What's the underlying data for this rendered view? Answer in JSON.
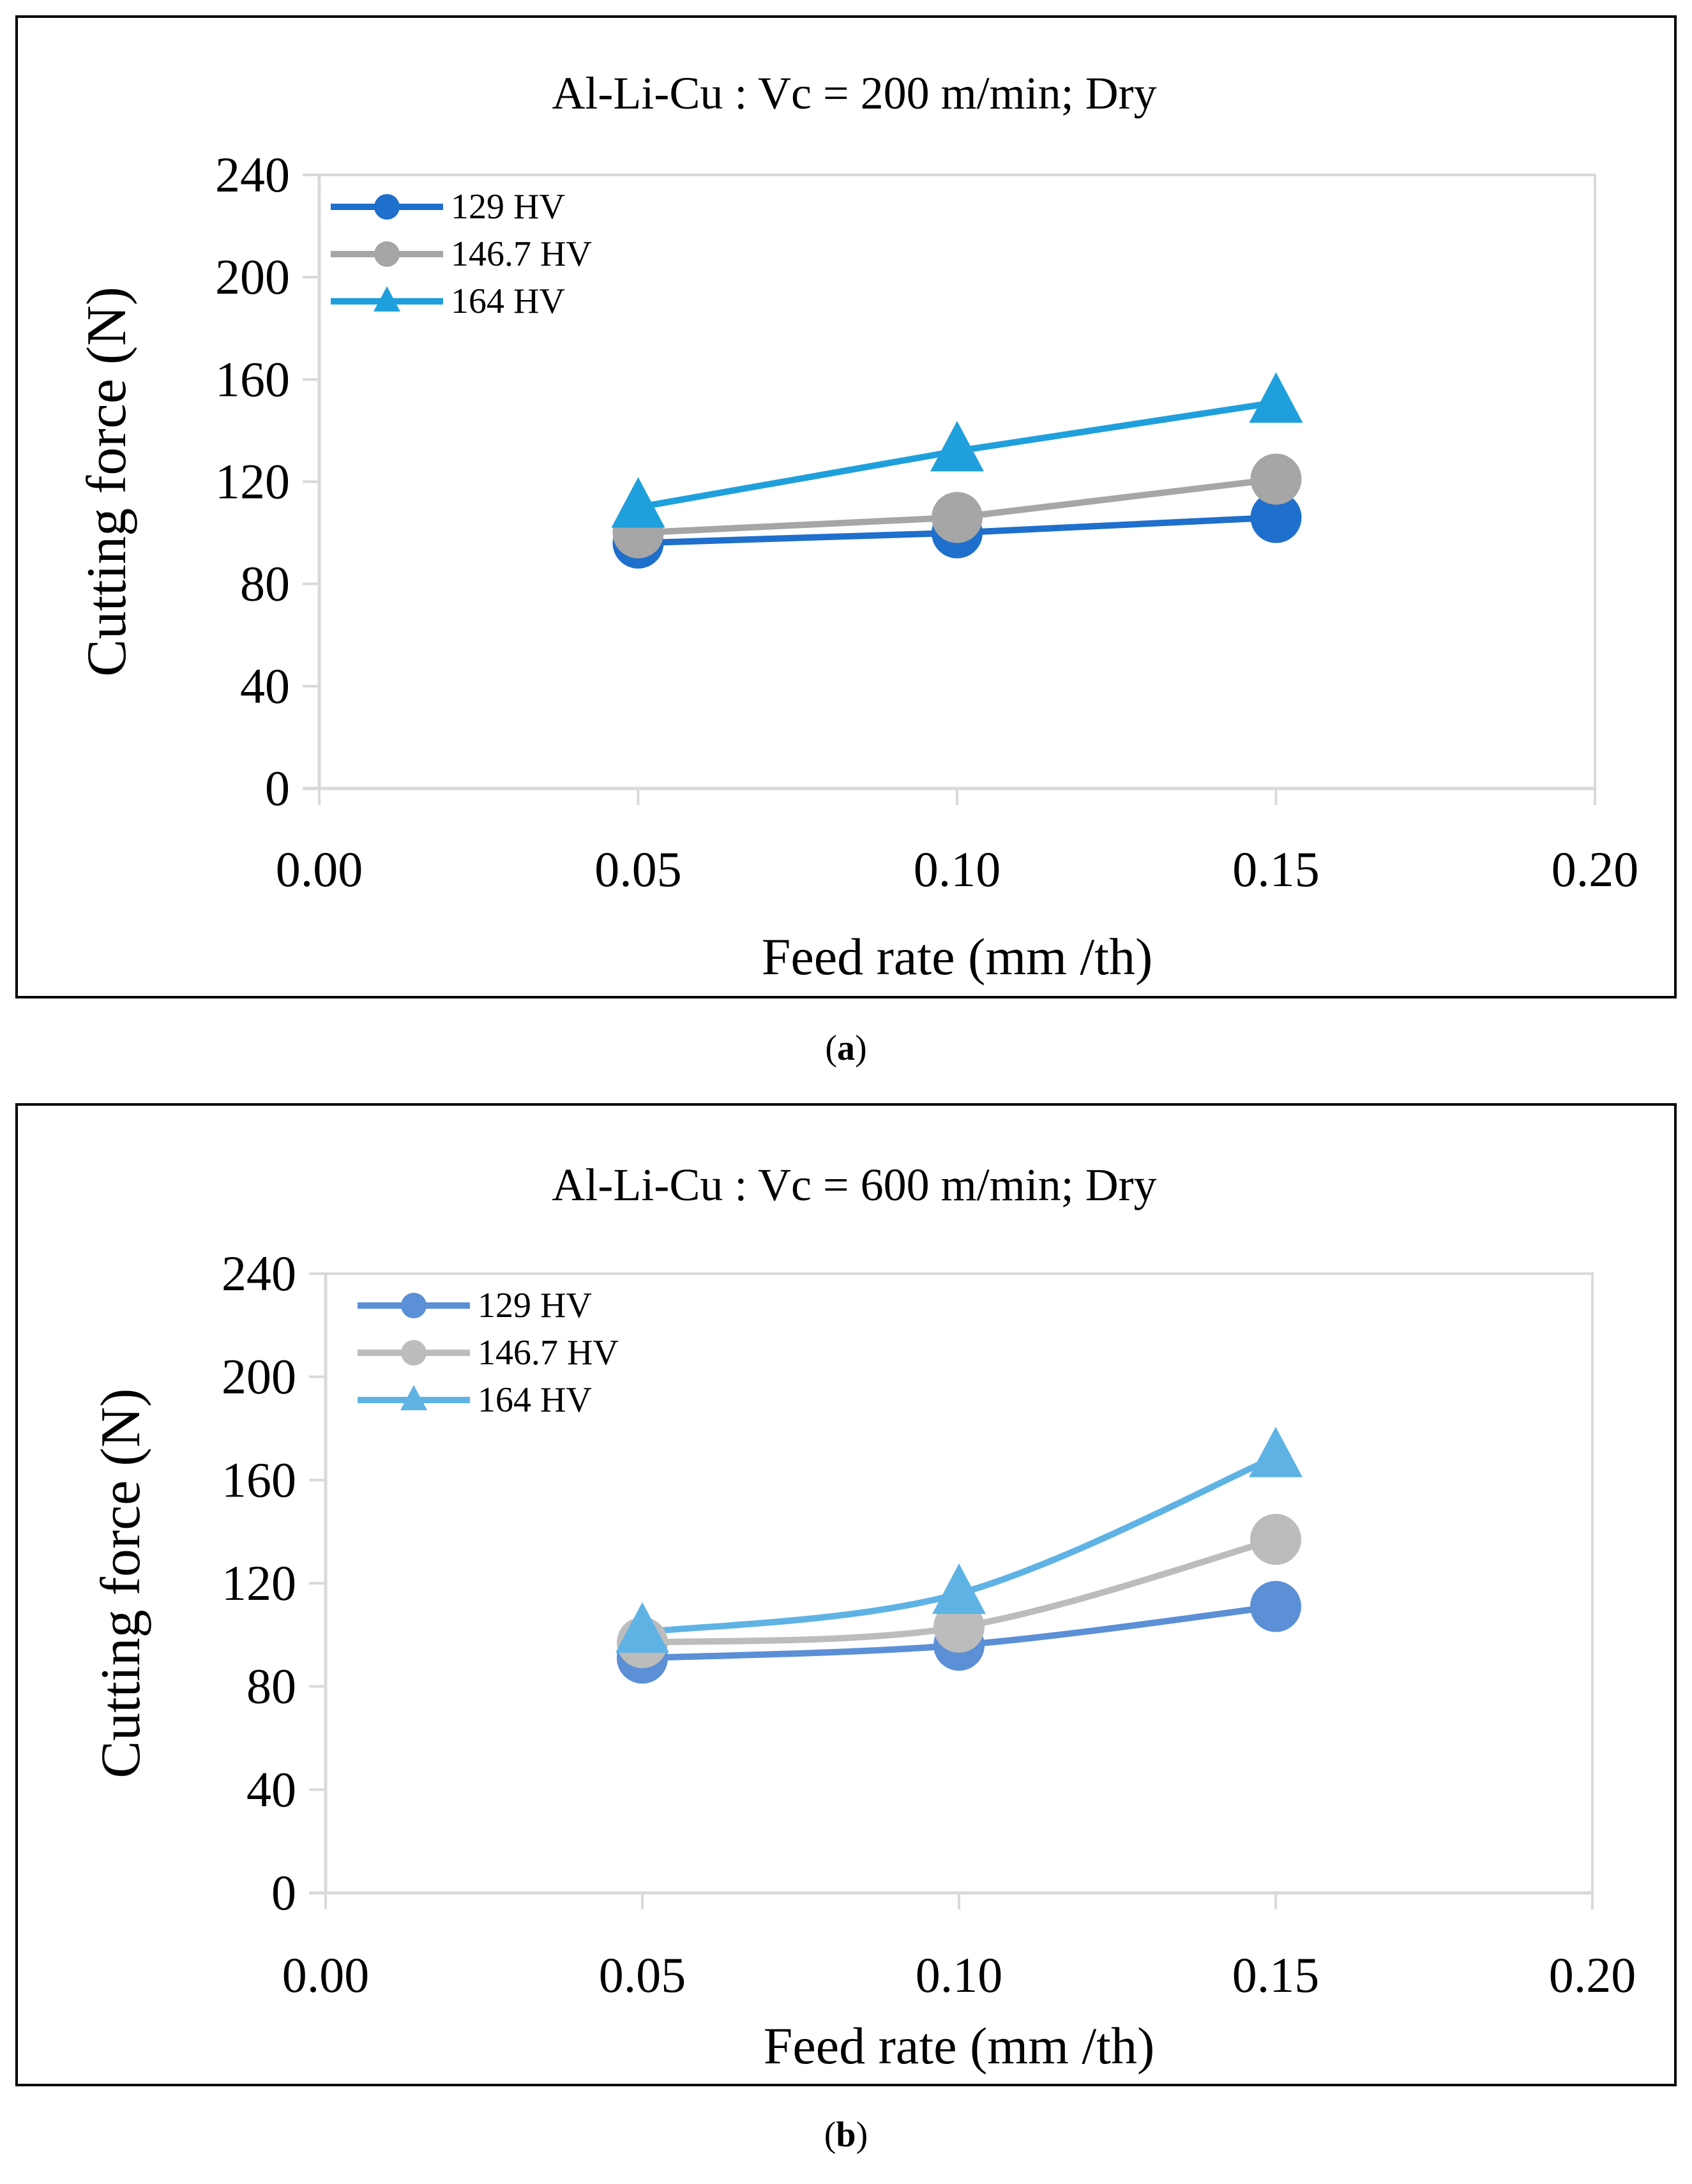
{
  "colors": {
    "axis": "#d9d9d9",
    "text": "#000000"
  },
  "chart_data": [
    {
      "type": "line",
      "title": "Al-Li-Cu : Vc = 200 m/min; Dry",
      "xlabel": "Feed rate (mm /th)",
      "ylabel": "Cutting force (N)",
      "xlim": [
        0,
        0.2
      ],
      "ylim": [
        0,
        240
      ],
      "xticks": [
        "0.00",
        "0.05",
        "0.10",
        "0.15",
        "0.20"
      ],
      "yticks": [
        "0",
        "40",
        "80",
        "120",
        "160",
        "200",
        "240"
      ],
      "grid": false,
      "legend_position": "top-left",
      "smooth": false,
      "x": [
        0.05,
        0.1,
        0.15
      ],
      "series": [
        {
          "name": "129 HV",
          "marker": "circle",
          "color": "#1f6fcc",
          "values": [
            96,
            100,
            106
          ]
        },
        {
          "name": "146.7 HV",
          "marker": "circle",
          "color": "#a6a6a6",
          "values": [
            100,
            106,
            121
          ]
        },
        {
          "name": "164 HV",
          "marker": "triangle",
          "color": "#1fa0dc",
          "values": [
            110,
            132,
            151
          ]
        }
      ],
      "caption_open": "(",
      "caption_letter": "a",
      "caption_close": ")"
    },
    {
      "type": "line",
      "title": "Al-Li-Cu : Vc = 600 m/min;  Dry",
      "xlabel": "Feed rate (mm /th)",
      "ylabel": "Cutting force (N)",
      "xlim": [
        0,
        0.2
      ],
      "ylim": [
        0,
        240
      ],
      "xticks": [
        "0.00",
        "0.05",
        "0.10",
        "0.15",
        "0.20"
      ],
      "yticks": [
        "0",
        "40",
        "80",
        "120",
        "160",
        "200",
        "240"
      ],
      "grid": false,
      "legend_position": "top-left",
      "smooth": true,
      "x": [
        0.05,
        0.1,
        0.15
      ],
      "series": [
        {
          "name": "129 HV",
          "marker": "circle",
          "color": "#5b8fd6",
          "values": [
            91,
            96,
            111
          ]
        },
        {
          "name": "146.7 HV",
          "marker": "circle",
          "color": "#bcbcbc",
          "values": [
            97,
            103,
            137
          ]
        },
        {
          "name": "164 HV",
          "marker": "triangle",
          "color": "#5fb3e4",
          "values": [
            101,
            116,
            169
          ]
        }
      ],
      "caption_open": "(",
      "caption_letter": "b",
      "caption_close": ")"
    }
  ]
}
